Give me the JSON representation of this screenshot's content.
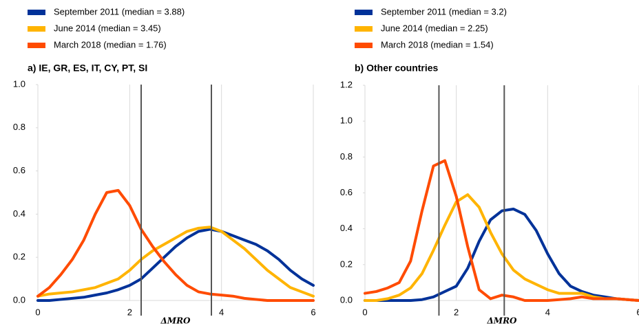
{
  "chart_data": [
    {
      "type": "line",
      "title": "a) IE, GR, ES, IT, CY, PT, SI",
      "x_label": "ΔMRO",
      "x": [
        0,
        0.25,
        0.5,
        0.75,
        1,
        1.25,
        1.5,
        1.75,
        2,
        2.25,
        2.5,
        2.75,
        3,
        3.25,
        3.5,
        3.75,
        4,
        4.25,
        4.5,
        4.75,
        5,
        5.25,
        5.5,
        5.75,
        6
      ],
      "series": [
        {
          "name": "September 2011 (median = 3.88)",
          "color": "#003299",
          "values": [
            0,
            0,
            0.005,
            0.01,
            0.015,
            0.025,
            0.035,
            0.05,
            0.07,
            0.1,
            0.15,
            0.2,
            0.25,
            0.29,
            0.32,
            0.33,
            0.32,
            0.3,
            0.28,
            0.26,
            0.23,
            0.19,
            0.14,
            0.1,
            0.07
          ]
        },
        {
          "name": "June 2014 (median = 3.45)",
          "color": "#ffb400",
          "values": [
            0.02,
            0.03,
            0.035,
            0.04,
            0.05,
            0.06,
            0.08,
            0.1,
            0.14,
            0.19,
            0.23,
            0.26,
            0.29,
            0.32,
            0.335,
            0.34,
            0.32,
            0.28,
            0.24,
            0.19,
            0.14,
            0.1,
            0.06,
            0.04,
            0.02
          ]
        },
        {
          "name": "March 2018 (median = 1.76)",
          "color": "#ff4b00",
          "values": [
            0.02,
            0.06,
            0.12,
            0.19,
            0.28,
            0.4,
            0.5,
            0.51,
            0.44,
            0.33,
            0.25,
            0.18,
            0.12,
            0.07,
            0.04,
            0.03,
            0.025,
            0.02,
            0.01,
            0.005,
            0,
            0,
            0,
            0,
            0
          ]
        }
      ],
      "vlines": [
        2.25,
        3.78
      ],
      "xlim": [
        0,
        6
      ],
      "xticks": [
        0,
        2,
        4,
        6
      ],
      "ylim": [
        0,
        1
      ],
      "yticks": [
        {
          "value": 0,
          "label": "0.0"
        },
        0.2,
        0.4,
        0.6,
        0.8,
        {
          "value": 1,
          "label": "1.0"
        }
      ],
      "grid": true
    },
    {
      "type": "line",
      "title": "b) Other countries",
      "x_label": "ΔMRO",
      "x": [
        0,
        0.25,
        0.5,
        0.75,
        1,
        1.25,
        1.5,
        1.75,
        2,
        2.25,
        2.5,
        2.75,
        3,
        3.25,
        3.5,
        3.75,
        4,
        4.25,
        4.5,
        4.75,
        5,
        5.25,
        5.5,
        5.75,
        6
      ],
      "series": [
        {
          "name": "September 2011 (median = 3.2)",
          "color": "#003299",
          "values": [
            0,
            0,
            0,
            0,
            0,
            0.005,
            0.02,
            0.05,
            0.08,
            0.18,
            0.33,
            0.45,
            0.5,
            0.51,
            0.48,
            0.39,
            0.26,
            0.15,
            0.08,
            0.05,
            0.03,
            0.02,
            0.01,
            0.005,
            0
          ]
        },
        {
          "name": "June 2014 (median = 2.25)",
          "color": "#ffb400",
          "values": [
            0,
            0,
            0.01,
            0.03,
            0.07,
            0.15,
            0.28,
            0.42,
            0.55,
            0.59,
            0.52,
            0.38,
            0.26,
            0.17,
            0.12,
            0.09,
            0.06,
            0.04,
            0.04,
            0.04,
            0.02,
            0.01,
            0.01,
            0.005,
            0
          ]
        },
        {
          "name": "March 2018 (median = 1.54)",
          "color": "#ff4b00",
          "values": [
            0.04,
            0.05,
            0.07,
            0.1,
            0.22,
            0.5,
            0.75,
            0.78,
            0.58,
            0.3,
            0.06,
            0.01,
            0.03,
            0.02,
            0,
            0,
            0,
            0.005,
            0.01,
            0.02,
            0.01,
            0.01,
            0.01,
            0.005,
            0
          ]
        }
      ],
      "vlines": [
        1.62,
        3.05
      ],
      "xlim": [
        0,
        6
      ],
      "xticks": [
        0,
        2,
        4,
        6
      ],
      "ylim": [
        0,
        1.2
      ],
      "yticks": [
        {
          "value": 0,
          "label": "0.0"
        },
        0.2,
        0.4,
        0.6,
        0.8,
        {
          "value": 1,
          "label": "1.0"
        },
        1.2
      ],
      "grid": true
    }
  ]
}
